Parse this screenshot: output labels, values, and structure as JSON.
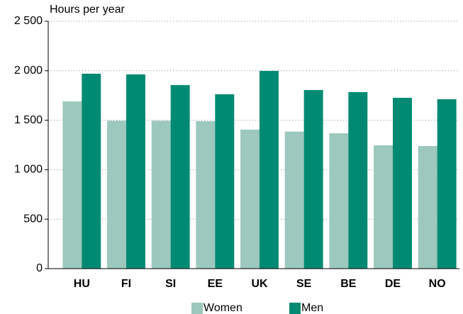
{
  "chart_data": {
    "type": "bar",
    "y_label": "Hours per year",
    "categories": [
      "HU",
      "FI",
      "SI",
      "EE",
      "UK",
      "SE",
      "BE",
      "DE",
      "NO"
    ],
    "series": [
      {
        "name": "Women",
        "color": "#9dc8bd",
        "values": [
          1690,
          1495,
          1495,
          1490,
          1405,
          1385,
          1368,
          1246,
          1239
        ]
      },
      {
        "name": "Men",
        "color": "#008a73",
        "values": [
          1970,
          1963,
          1855,
          1762,
          1998,
          1805,
          1784,
          1726,
          1712
        ]
      }
    ],
    "ylim": [
      0,
      2500
    ],
    "yticks": [
      0,
      500,
      {
        "value": 1000,
        "label": "1 000"
      },
      {
        "value": 1500,
        "label": "1 500"
      },
      {
        "value": 2000,
        "label": "2 000"
      },
      {
        "value": 2500,
        "label": "2 500"
      }
    ],
    "grid": true,
    "legend": "bottom"
  }
}
